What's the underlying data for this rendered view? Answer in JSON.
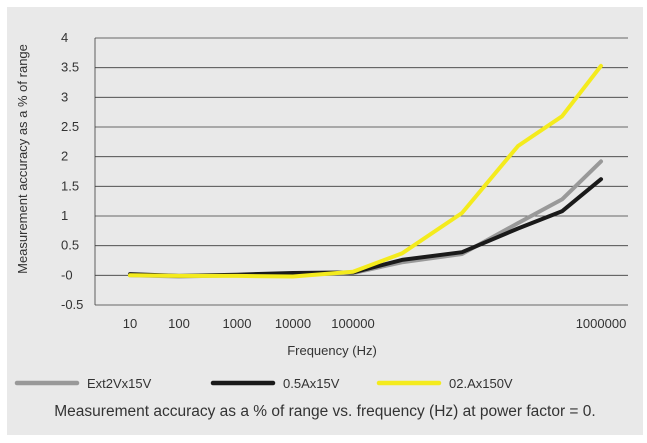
{
  "caption": "Measurement accuracy as a % of range vs. frequency (Hz) at power factor = 0.",
  "chart_data": {
    "type": "line",
    "title": "",
    "xlabel": "Frequency (Hz)",
    "ylabel": "Measurement accuracy as a % of range",
    "x_ticks": [
      "10",
      "100",
      "1000",
      "10000",
      "100000",
      "",
      "",
      "",
      "",
      "1000000"
    ],
    "y_ticks": [
      "-0.5",
      "-0",
      "0.5",
      "1",
      "1.5",
      "2",
      "2.5",
      "3",
      "3.5",
      "4"
    ],
    "ylim": [
      -0.5,
      4
    ],
    "grid": "horizontal",
    "legend_position": "bottom",
    "series": [
      {
        "name": "Ext2Vx15V",
        "color": "#999999",
        "values": [
          0.0,
          -0.02,
          0.0,
          0.02,
          0.04,
          0.22,
          0.36,
          0.88,
          1.28,
          1.92
        ]
      },
      {
        "name": "0.5Ax15V",
        "color": "#1a1a1a",
        "values": [
          0.02,
          -0.01,
          0.01,
          0.04,
          0.05,
          0.26,
          0.39,
          0.79,
          1.08,
          1.62
        ]
      },
      {
        "name": "02.Ax150V",
        "color": "#f4eb1d",
        "values": [
          0.0,
          -0.01,
          -0.01,
          -0.02,
          0.06,
          0.37,
          1.05,
          2.18,
          2.68,
          3.53
        ]
      }
    ]
  }
}
